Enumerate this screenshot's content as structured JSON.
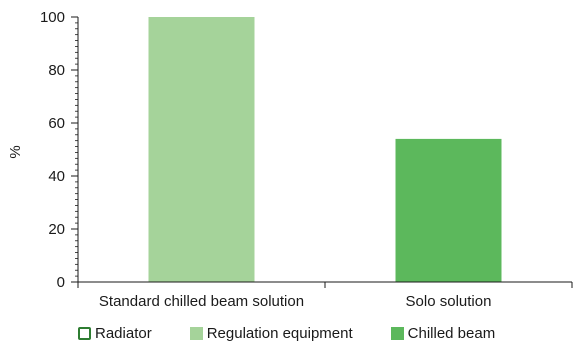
{
  "chart_data": {
    "type": "bar",
    "categories": [
      "Standard chilled beam solution",
      "Solo solution"
    ],
    "series": [
      {
        "name": "Radiator",
        "values": [
          0,
          0
        ],
        "color": "#2e7d32",
        "fill": "none"
      },
      {
        "name": "Regulation equipment",
        "values": [
          100,
          0
        ],
        "color": "#a5d39a"
      },
      {
        "name": "Chilled beam",
        "values": [
          0,
          54
        ],
        "color": "#5cb85c"
      }
    ],
    "title": "",
    "xlabel": "",
    "ylabel": "%",
    "ylim": [
      0,
      100
    ],
    "yticks": [
      0,
      20,
      40,
      60,
      80,
      100
    ],
    "minor_ticks_per_major": 8,
    "grid": false,
    "legend_position": "bottom"
  }
}
